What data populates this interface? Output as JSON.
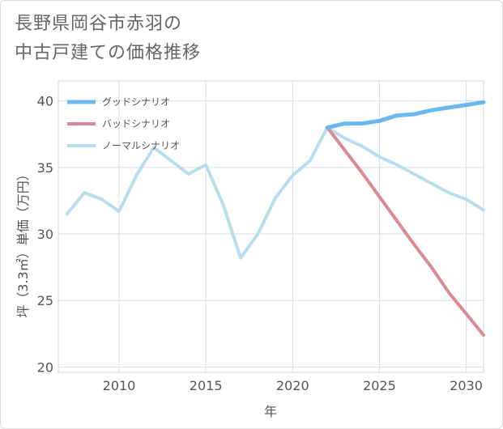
{
  "title_lines": [
    "長野県岡谷市赤羽の",
    "中古戸建ての価格推移"
  ],
  "chart_data": {
    "type": "line",
    "xlabel": "年",
    "ylabel": "坪（3.3㎡）単価（万円）",
    "xlim": [
      2006.5,
      2031
    ],
    "ylim": [
      19.6,
      41.5
    ],
    "x_ticks": [
      2010,
      2015,
      2020,
      2025,
      2030
    ],
    "y_ticks": [
      20,
      25,
      30,
      35,
      40
    ],
    "grid": true,
    "legend_position": "top-left",
    "series": [
      {
        "name": "グッドシナリオ",
        "color": "#6bb8ee",
        "line_width": 5,
        "x": [
          2022,
          2023,
          2024,
          2025,
          2026,
          2027,
          2028,
          2029,
          2030,
          2031
        ],
        "y": [
          38.0,
          38.3,
          38.3,
          38.5,
          38.9,
          39.0,
          39.3,
          39.5,
          39.7,
          39.9
        ]
      },
      {
        "name": "バッドシナリオ",
        "color": "#d98a94",
        "line_width": 4,
        "x": [
          2022,
          2023,
          2024,
          2025,
          2026,
          2027,
          2028,
          2029,
          2030,
          2031
        ],
        "y": [
          38.0,
          36.3,
          34.6,
          32.8,
          31.0,
          29.2,
          27.5,
          25.6,
          24.0,
          22.4
        ]
      },
      {
        "name": "ノーマルシナリオ",
        "color": "#b8dded",
        "line_width": 4,
        "x": [
          2007,
          2008,
          2009,
          2010,
          2011,
          2012,
          2013,
          2014,
          2015,
          2016,
          2017,
          2018,
          2019,
          2020,
          2021,
          2022,
          2023,
          2024,
          2025,
          2026,
          2027,
          2028,
          2029,
          2030,
          2031
        ],
        "y": [
          31.5,
          33.1,
          32.6,
          31.7,
          34.4,
          36.5,
          35.5,
          34.5,
          35.2,
          32.2,
          28.2,
          30.0,
          32.7,
          34.4,
          35.5,
          38.0,
          37.2,
          36.6,
          35.8,
          35.2,
          34.5,
          33.8,
          33.1,
          32.6,
          31.8
        ]
      }
    ]
  }
}
